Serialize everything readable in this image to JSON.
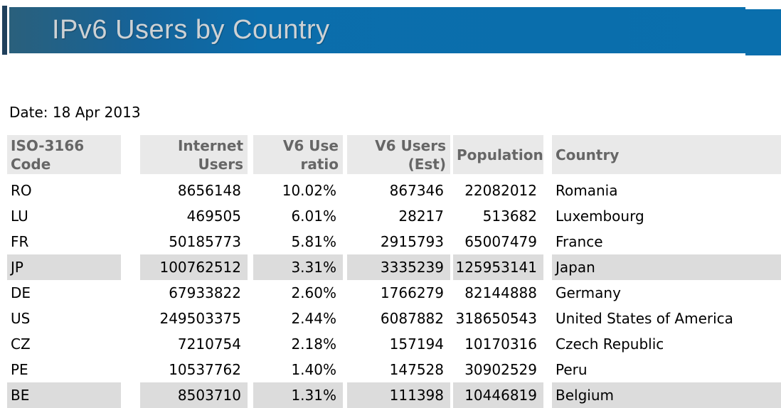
{
  "banner": {
    "title": "IPv6 Users by Country"
  },
  "date_line": "Date: 18 Apr 2013",
  "colors": {
    "banner_blue": "#0a6fad",
    "banner_gradient_dark": "#2a607c",
    "banner_accent_bar": "#20405c",
    "banner_title_text": "#cdd1d4",
    "header_cell_bg": "#e9e9e9",
    "header_text": "#666666",
    "stripe_row_bg": "#dcdcdc",
    "data_text": "#000000"
  },
  "table": {
    "columns": [
      {
        "id": "code",
        "label": "ISO-3166\nCode",
        "align": "left"
      },
      {
        "id": "internet_users",
        "label": "Internet\nUsers",
        "align": "right"
      },
      {
        "id": "v6_use_ratio",
        "label": "V6 Use\nratio",
        "align": "right"
      },
      {
        "id": "v6_users_est",
        "label": "V6 Users\n(Est)",
        "align": "right"
      },
      {
        "id": "population",
        "label": "Population",
        "align": "left"
      },
      {
        "id": "country",
        "label": "Country",
        "align": "left"
      }
    ],
    "rows": [
      {
        "cells": [
          "RO",
          "8656148",
          "10.02%",
          "867346",
          "22082012",
          "Romania"
        ],
        "striped": false
      },
      {
        "cells": [
          "LU",
          "469505",
          "6.01%",
          "28217",
          "513682",
          "Luxembourg"
        ],
        "striped": false
      },
      {
        "cells": [
          "FR",
          "50185773",
          "5.81%",
          "2915793",
          "65007479",
          "France"
        ],
        "striped": false
      },
      {
        "cells": [
          "JP",
          "100762512",
          "3.31%",
          "3335239",
          "125953141",
          "Japan"
        ],
        "striped": true
      },
      {
        "cells": [
          "DE",
          "67933822",
          "2.60%",
          "1766279",
          "82144888",
          "Germany"
        ],
        "striped": false
      },
      {
        "cells": [
          "US",
          "249503375",
          "2.44%",
          "6087882",
          "318650543",
          "United States of America"
        ],
        "striped": false
      },
      {
        "cells": [
          "CZ",
          "7210754",
          "2.18%",
          "157194",
          "10170316",
          "Czech Republic"
        ],
        "striped": false
      },
      {
        "cells": [
          "PE",
          "10537762",
          "1.40%",
          "147528",
          "30902529",
          "Peru"
        ],
        "striped": false
      },
      {
        "cells": [
          "BE",
          "8503710",
          "1.31%",
          "111398",
          "10446819",
          "Belgium"
        ],
        "striped": true
      }
    ]
  }
}
